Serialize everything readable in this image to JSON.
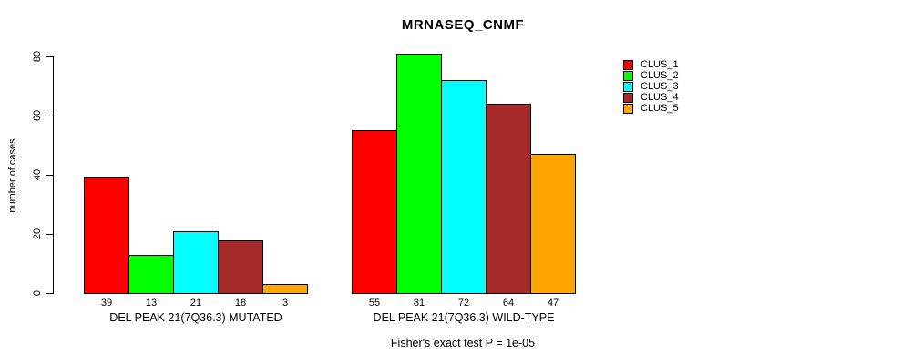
{
  "chart_data": {
    "type": "bar",
    "title": "MRNASEQ_CNMF",
    "ylabel": "number of cases",
    "xlabel": "",
    "ylim": [
      0,
      80
    ],
    "yticks": [
      0,
      20,
      40,
      60,
      80
    ],
    "grid": false,
    "legend_position": "top-right-inside",
    "categories": [
      "DEL PEAK 21(7Q36.3) MUTATED",
      "DEL PEAK 21(7Q36.3) WILD-TYPE"
    ],
    "series": [
      {
        "name": "CLUS_1",
        "color": "#FF0000",
        "values": [
          39,
          55
        ]
      },
      {
        "name": "CLUS_2",
        "color": "#00FF00",
        "values": [
          13,
          81
        ]
      },
      {
        "name": "CLUS_3",
        "color": "#00FFFF",
        "values": [
          21,
          72
        ]
      },
      {
        "name": "CLUS_4",
        "color": "#A52A2A",
        "values": [
          18,
          64
        ]
      },
      {
        "name": "CLUS_5",
        "color": "#FFA500",
        "values": [
          3,
          47
        ]
      }
    ],
    "bar_value_labels_shown": true,
    "annotation": "Fisher's exact test P = 1e-05",
    "bar_border_color": "#000000",
    "background_color": "#FFFFFF"
  }
}
